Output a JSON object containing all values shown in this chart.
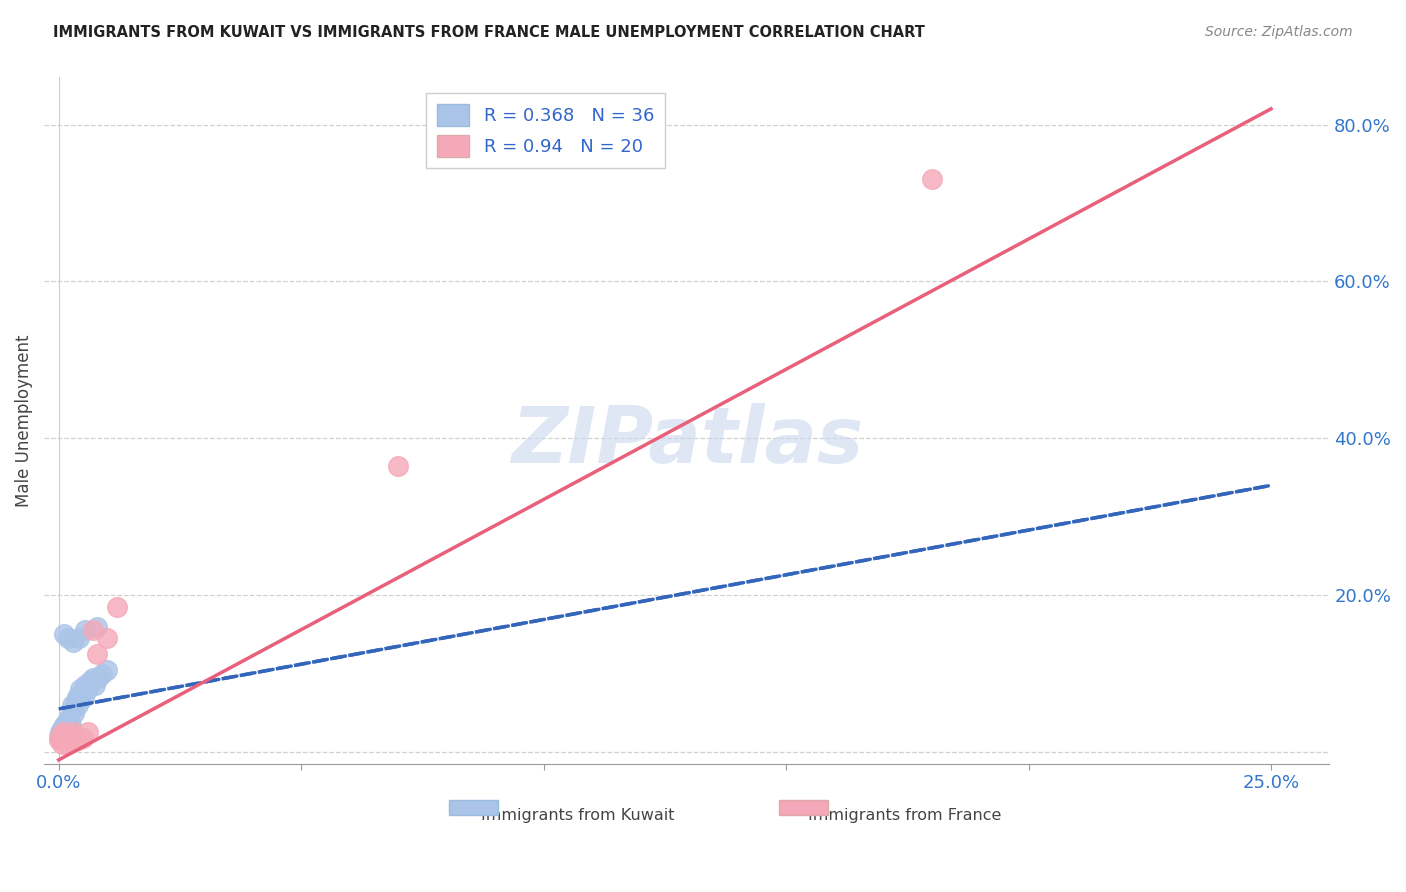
{
  "title": "IMMIGRANTS FROM KUWAIT VS IMMIGRANTS FROM FRANCE MALE UNEMPLOYMENT CORRELATION CHART",
  "source": "Source: ZipAtlas.com",
  "ylabel": "Male Unemployment",
  "xlim": [
    -0.003,
    0.262
  ],
  "ylim": [
    -0.015,
    0.86
  ],
  "kuwait_color": "#aac4e8",
  "france_color": "#f5a8b8",
  "kuwait_line_color": "#3366bb",
  "france_line_color": "#e8607a",
  "kuwait_R": 0.368,
  "kuwait_N": 36,
  "france_R": 0.94,
  "france_N": 20,
  "watermark": "ZIPatlas",
  "kuwait_scatter_x": [
    0.0,
    0.0002,
    0.0004,
    0.0006,
    0.0008,
    0.001,
    0.0012,
    0.0014,
    0.0016,
    0.0018,
    0.002,
    0.0022,
    0.0025,
    0.0028,
    0.003,
    0.0032,
    0.0035,
    0.0038,
    0.004,
    0.0045,
    0.0048,
    0.0052,
    0.0055,
    0.006,
    0.0065,
    0.007,
    0.0075,
    0.0082,
    0.009,
    0.01,
    0.0012,
    0.002,
    0.003,
    0.0042,
    0.0055,
    0.008
  ],
  "kuwait_scatter_y": [
    0.02,
    0.025,
    0.015,
    0.03,
    0.02,
    0.035,
    0.025,
    0.03,
    0.02,
    0.04,
    0.03,
    0.045,
    0.035,
    0.06,
    0.055,
    0.05,
    0.065,
    0.07,
    0.06,
    0.08,
    0.075,
    0.07,
    0.085,
    0.08,
    0.09,
    0.095,
    0.085,
    0.095,
    0.1,
    0.105,
    0.15,
    0.145,
    0.14,
    0.145,
    0.155,
    0.16
  ],
  "france_scatter_x": [
    0.0,
    0.0003,
    0.0006,
    0.0009,
    0.0012,
    0.0015,
    0.0018,
    0.0022,
    0.0025,
    0.003,
    0.0035,
    0.004,
    0.005,
    0.006,
    0.007,
    0.008,
    0.01,
    0.012,
    0.07,
    0.18
  ],
  "france_scatter_y": [
    0.015,
    0.02,
    0.01,
    0.025,
    0.015,
    0.02,
    0.01,
    0.015,
    0.018,
    0.025,
    0.02,
    0.015,
    0.018,
    0.025,
    0.155,
    0.125,
    0.145,
    0.185,
    0.365,
    0.73
  ],
  "kw_line_x": [
    0.0,
    0.25
  ],
  "kw_line_y": [
    0.055,
    0.34
  ],
  "fr_line_x": [
    0.0,
    0.25
  ],
  "fr_line_y": [
    -0.01,
    0.82
  ]
}
